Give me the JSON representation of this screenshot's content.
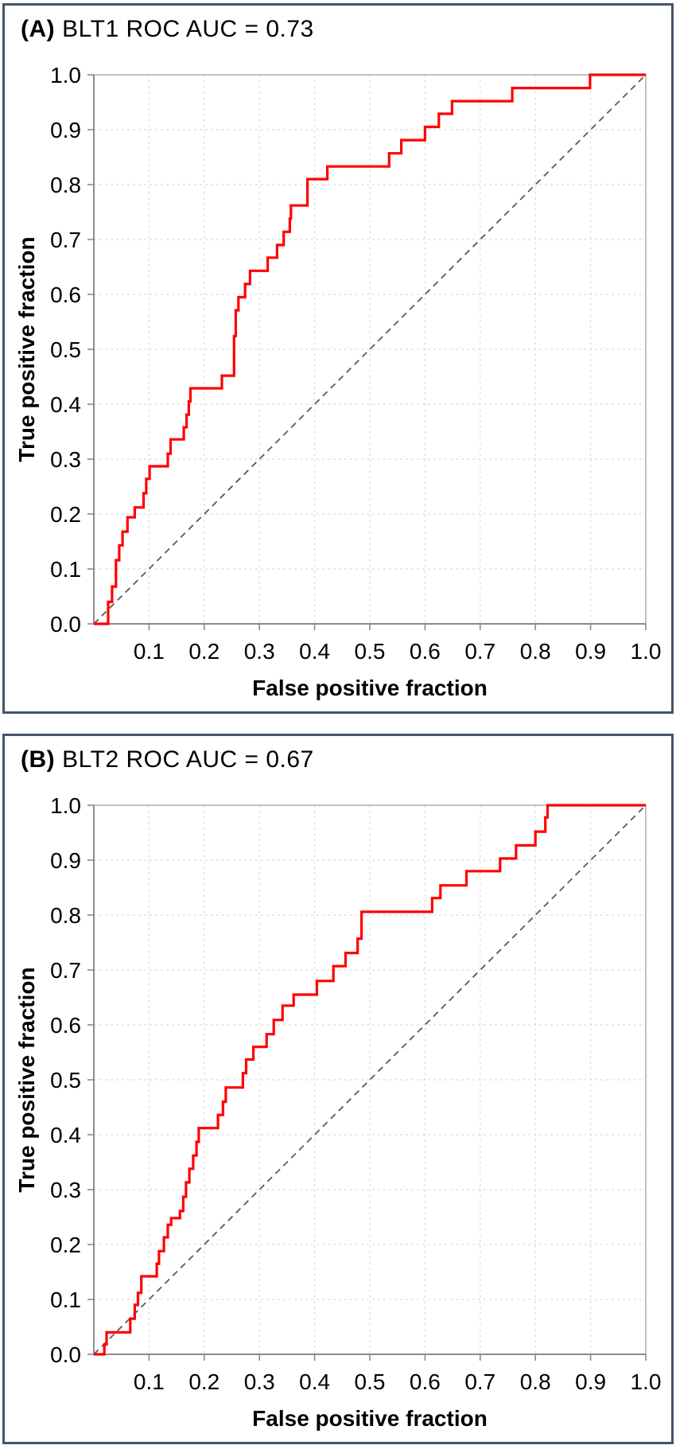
{
  "page": {
    "background": "#ffffff",
    "panel_border_color": "#44546a"
  },
  "colors": {
    "curve": "#ff0000",
    "diagonal": "#595959",
    "grid": "#dcdcdc",
    "frame": "#b3b3b3",
    "axis": "#8c8c8c",
    "text": "#000000"
  },
  "chart_data": [
    {
      "type": "line",
      "subtype": "roc_step_curve",
      "panel_label": "(A)",
      "title": "BLT1 ROC AUC = 0.73",
      "auc": 0.73,
      "xlabel": "False positive fraction",
      "ylabel": "True positive fraction",
      "xlim": [
        0,
        1
      ],
      "ylim": [
        0,
        1
      ],
      "grid": true,
      "legend": "none",
      "x_ticks": [
        "0.1",
        "0.2",
        "0.3",
        "0.4",
        "0.5",
        "0.6",
        "0.7",
        "0.8",
        "0.9",
        "1.0"
      ],
      "y_ticks": [
        "0.0",
        "0.1",
        "0.2",
        "0.3",
        "0.4",
        "0.5",
        "0.6",
        "0.7",
        "0.8",
        "0.9",
        "1.0"
      ],
      "series": [
        {
          "name": "ROC curve",
          "color": "#ff0000",
          "step": true,
          "points": [
            [
              0.026,
              0.04
            ],
            [
              0.033,
              0.068
            ],
            [
              0.04,
              0.116
            ],
            [
              0.046,
              0.143
            ],
            [
              0.052,
              0.168
            ],
            [
              0.061,
              0.194
            ],
            [
              0.074,
              0.212
            ],
            [
              0.09,
              0.238
            ],
            [
              0.095,
              0.264
            ],
            [
              0.101,
              0.287
            ],
            [
              0.134,
              0.31
            ],
            [
              0.139,
              0.336
            ],
            [
              0.163,
              0.358
            ],
            [
              0.168,
              0.381
            ],
            [
              0.172,
              0.405
            ],
            [
              0.175,
              0.429
            ],
            [
              0.232,
              0.452
            ],
            [
              0.254,
              0.524
            ],
            [
              0.257,
              0.571
            ],
            [
              0.262,
              0.595
            ],
            [
              0.274,
              0.619
            ],
            [
              0.283,
              0.643
            ],
            [
              0.315,
              0.667
            ],
            [
              0.332,
              0.69
            ],
            [
              0.344,
              0.714
            ],
            [
              0.355,
              0.738
            ],
            [
              0.357,
              0.762
            ],
            [
              0.387,
              0.81
            ],
            [
              0.423,
              0.833
            ],
            [
              0.535,
              0.857
            ],
            [
              0.557,
              0.881
            ],
            [
              0.6,
              0.905
            ],
            [
              0.625,
              0.929
            ],
            [
              0.649,
              0.952
            ],
            [
              0.758,
              0.976
            ],
            [
              0.899,
              1.0
            ],
            [
              1.0,
              1.0
            ]
          ]
        },
        {
          "name": "Chance reference diagonal",
          "color": "#595959",
          "style": "dashed",
          "points": [
            [
              0,
              0
            ],
            [
              1,
              1
            ]
          ]
        }
      ]
    },
    {
      "type": "line",
      "subtype": "roc_step_curve",
      "panel_label": "(B)",
      "title": "BLT2 ROC AUC = 0.67",
      "auc": 0.67,
      "xlabel": "False positive fraction",
      "ylabel": "True positive fraction",
      "xlim": [
        0,
        1
      ],
      "ylim": [
        0,
        1
      ],
      "grid": true,
      "legend": "none",
      "x_ticks": [
        "0.1",
        "0.2",
        "0.3",
        "0.4",
        "0.5",
        "0.6",
        "0.7",
        "0.8",
        "0.9",
        "1.0"
      ],
      "y_ticks": [
        "0.0",
        "0.1",
        "0.2",
        "0.3",
        "0.4",
        "0.5",
        "0.6",
        "0.7",
        "0.8",
        "0.9",
        "1.0"
      ],
      "series": [
        {
          "name": "ROC curve",
          "color": "#ff0000",
          "step": true,
          "points": [
            [
              0.019,
              0.018
            ],
            [
              0.023,
              0.04
            ],
            [
              0.066,
              0.065
            ],
            [
              0.074,
              0.09
            ],
            [
              0.08,
              0.112
            ],
            [
              0.086,
              0.142
            ],
            [
              0.114,
              0.165
            ],
            [
              0.118,
              0.188
            ],
            [
              0.127,
              0.213
            ],
            [
              0.134,
              0.236
            ],
            [
              0.14,
              0.248
            ],
            [
              0.156,
              0.261
            ],
            [
              0.162,
              0.287
            ],
            [
              0.167,
              0.313
            ],
            [
              0.173,
              0.338
            ],
            [
              0.18,
              0.362
            ],
            [
              0.186,
              0.387
            ],
            [
              0.19,
              0.412
            ],
            [
              0.225,
              0.436
            ],
            [
              0.234,
              0.46
            ],
            [
              0.239,
              0.486
            ],
            [
              0.27,
              0.512
            ],
            [
              0.276,
              0.537
            ],
            [
              0.289,
              0.56
            ],
            [
              0.313,
              0.583
            ],
            [
              0.326,
              0.609
            ],
            [
              0.342,
              0.635
            ],
            [
              0.362,
              0.655
            ],
            [
              0.404,
              0.68
            ],
            [
              0.434,
              0.707
            ],
            [
              0.456,
              0.731
            ],
            [
              0.478,
              0.757
            ],
            [
              0.485,
              0.806
            ],
            [
              0.613,
              0.831
            ],
            [
              0.628,
              0.854
            ],
            [
              0.675,
              0.88
            ],
            [
              0.736,
              0.903
            ],
            [
              0.765,
              0.927
            ],
            [
              0.8,
              0.952
            ],
            [
              0.818,
              0.978
            ],
            [
              0.822,
              1.0
            ],
            [
              1.0,
              1.0
            ]
          ]
        },
        {
          "name": "Chance reference diagonal",
          "color": "#595959",
          "style": "dashed",
          "points": [
            [
              0,
              0
            ],
            [
              1,
              1
            ]
          ]
        }
      ]
    }
  ]
}
